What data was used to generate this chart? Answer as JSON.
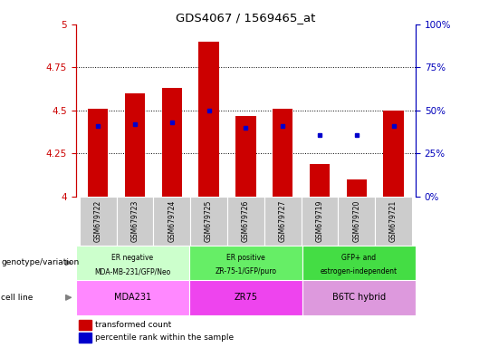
{
  "title": "GDS4067 / 1569465_at",
  "samples": [
    "GSM679722",
    "GSM679723",
    "GSM679724",
    "GSM679725",
    "GSM679726",
    "GSM679727",
    "GSM679719",
    "GSM679720",
    "GSM679721"
  ],
  "bar_values": [
    4.51,
    4.6,
    4.63,
    4.9,
    4.47,
    4.51,
    4.19,
    4.1,
    4.5
  ],
  "bar_base": 4.0,
  "percentile_values": [
    4.41,
    4.42,
    4.43,
    4.5,
    4.4,
    4.41,
    4.36,
    4.36,
    4.41
  ],
  "bar_color": "#CC0000",
  "percentile_color": "#0000CC",
  "ylim_left": [
    4.0,
    5.0
  ],
  "ylim_right": [
    0,
    100
  ],
  "yticks_left": [
    4.0,
    4.25,
    4.5,
    4.75,
    5.0
  ],
  "yticks_right": [
    0,
    25,
    50,
    75,
    100
  ],
  "ytick_labels_left": [
    "4",
    "4.25",
    "4.5",
    "4.75",
    "5"
  ],
  "ytick_labels_right": [
    "0%",
    "25%",
    "50%",
    "75%",
    "100%"
  ],
  "groups": [
    {
      "label_top": "ER negative",
      "label_bot": "MDA-MB-231/GFP/Neo",
      "cell_line": "MDA231",
      "color_geno": "#ccffcc",
      "color_cell": "#ff88ff",
      "start": 0,
      "end": 3
    },
    {
      "label_top": "ER positive",
      "label_bot": "ZR-75-1/GFP/puro",
      "cell_line": "ZR75",
      "color_geno": "#66ee66",
      "color_cell": "#ee44ee",
      "start": 3,
      "end": 6
    },
    {
      "label_top": "GFP+ and",
      "label_bot": "estrogen-independent",
      "cell_line": "B6TC hybrid",
      "color_geno": "#44dd44",
      "color_cell": "#dd99dd",
      "start": 6,
      "end": 9
    }
  ],
  "legend_items": [
    {
      "label": "transformed count",
      "color": "#CC0000"
    },
    {
      "label": "percentile rank within the sample",
      "color": "#0000CC"
    }
  ],
  "bar_width": 0.55,
  "left_axis_color": "#CC0000",
  "right_axis_color": "#0000BB",
  "sample_bg": "#cccccc",
  "grid_yticks": [
    4.25,
    4.5,
    4.75
  ]
}
